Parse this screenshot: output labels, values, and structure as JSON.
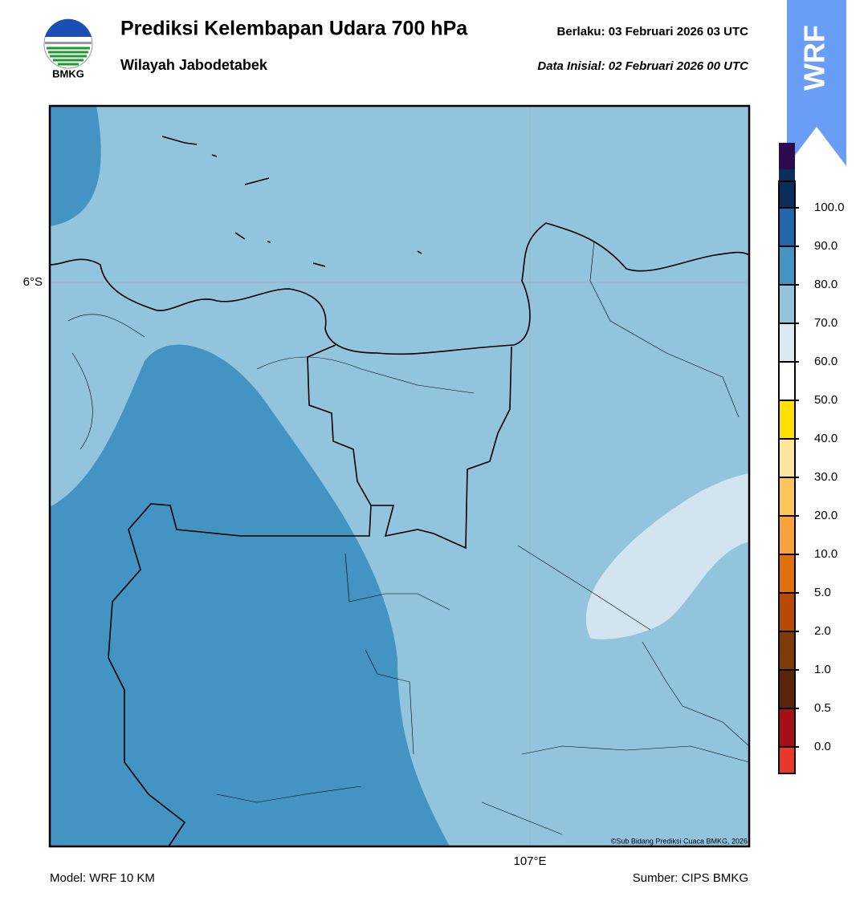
{
  "header": {
    "title": "Prediksi Kelembapan Udara 700 hPa",
    "subtitle": "Wilayah Jabodetabek",
    "valid": "Berlaku:  03 Februari 2026 03 UTC",
    "init": "Data Inisial:  02 Februari 2026 00 UTC",
    "logo_text": "BMKG",
    "badge": "WRF"
  },
  "map": {
    "lat_label": "6°S",
    "lon_label": "107°E",
    "credit": "©Sub Bidang Prediksi Cuaca BMKG, 2026"
  },
  "colorbar": {
    "ticks": [
      {
        "value": 0,
        "label": "0.0"
      },
      {
        "value": 0.5,
        "label": "0.5"
      },
      {
        "value": 1,
        "label": "1.0"
      },
      {
        "value": 2,
        "label": "2.0"
      },
      {
        "value": 5,
        "label": "5.0"
      },
      {
        "value": 10,
        "label": "10.0"
      },
      {
        "value": 20,
        "label": "20.0"
      },
      {
        "value": 30,
        "label": "30.0"
      },
      {
        "value": 40,
        "label": "40.0"
      },
      {
        "value": 50,
        "label": "50.0"
      },
      {
        "value": 60,
        "label": "60.0"
      },
      {
        "value": 70,
        "label": "70.0"
      },
      {
        "value": 80,
        "label": "80.0"
      },
      {
        "value": 90,
        "label": "90.0"
      },
      {
        "value": 100,
        "label": "100.0"
      }
    ],
    "colors": [
      "#e8392c",
      "#a50f15",
      "#5a2508",
      "#7f3b08",
      "#b84a06",
      "#e0700e",
      "#f7a23a",
      "#fdc55c",
      "#fde6a0",
      "#ffe000",
      "#ffffff",
      "#dce9f3",
      "#93c4de",
      "#4393c3",
      "#2166ac",
      "#0b2f5c",
      "#2d0a4f"
    ]
  },
  "footer": {
    "model": "Model: WRF 10 KM",
    "source": "Sumber: CIPS BMKG"
  }
}
